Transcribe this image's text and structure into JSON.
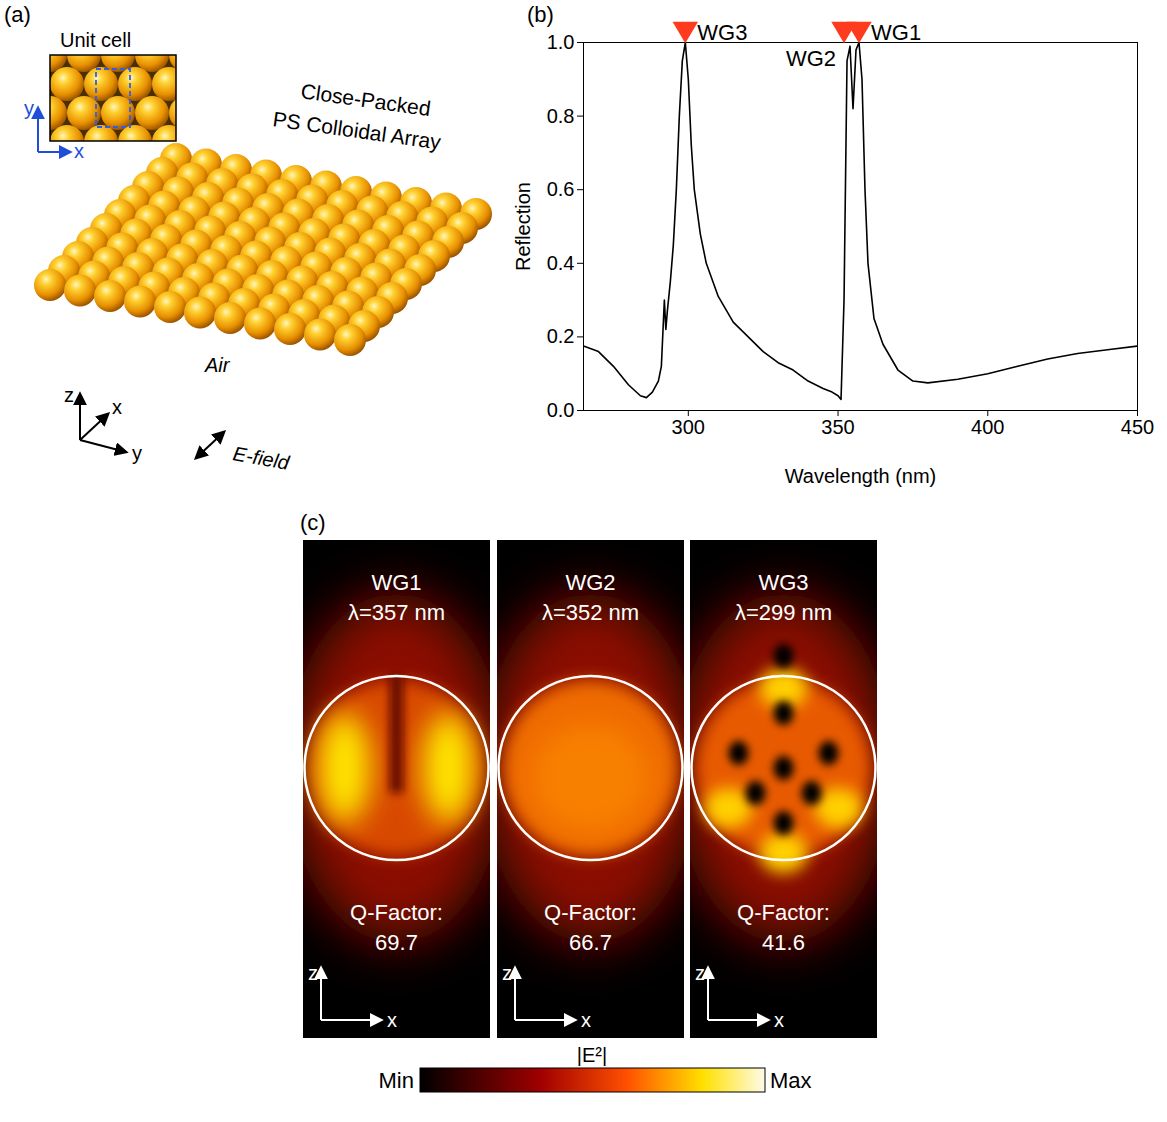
{
  "panel_labels": [
    "(a)",
    "(b)",
    "(c)"
  ],
  "schematic": {
    "inset_title": "Unit cell",
    "inset_axes": [
      "x",
      "y"
    ],
    "array_label": [
      "Close-Packed",
      "PS Colloidal Array"
    ],
    "medium": "Air",
    "axes": [
      "z",
      "x",
      "y"
    ],
    "polarization": "E-field"
  },
  "chart_data": {
    "type": "line",
    "x_label": "Wavelength (nm)",
    "y_label": "Reflection",
    "color": "#000000",
    "x": [
      265,
      270,
      275,
      280,
      284,
      286,
      288,
      290,
      291,
      292,
      292.5,
      293,
      294,
      295,
      296,
      297,
      298,
      299,
      300,
      301,
      302,
      304,
      306,
      310,
      315,
      320,
      325,
      330,
      335,
      340,
      345,
      348,
      350,
      351,
      352,
      353,
      354,
      355,
      356,
      357,
      358,
      359,
      360,
      362,
      365,
      370,
      375,
      380,
      390,
      400,
      410,
      420,
      430,
      440,
      450
    ],
    "values": [
      0.175,
      0.16,
      0.12,
      0.07,
      0.04,
      0.035,
      0.05,
      0.08,
      0.12,
      0.3,
      0.22,
      0.27,
      0.35,
      0.45,
      0.6,
      0.8,
      0.95,
      1.0,
      0.9,
      0.72,
      0.6,
      0.48,
      0.4,
      0.31,
      0.24,
      0.2,
      0.16,
      0.13,
      0.11,
      0.08,
      0.06,
      0.05,
      0.04,
      0.03,
      0.3,
      0.95,
      0.99,
      0.82,
      0.98,
      1.0,
      0.9,
      0.6,
      0.4,
      0.25,
      0.18,
      0.11,
      0.08,
      0.075,
      0.085,
      0.1,
      0.12,
      0.14,
      0.155,
      0.165,
      0.175
    ],
    "xlim": [
      265,
      450
    ],
    "xticks": [
      300,
      350,
      400,
      450
    ],
    "ylim": [
      0,
      1.0
    ],
    "yticks": [
      {
        "value": 0,
        "label": "0.0"
      },
      {
        "value": 0.2,
        "label": "0.2"
      },
      {
        "value": 0.4,
        "label": "0.4"
      },
      {
        "value": 0.6,
        "label": "0.6"
      },
      {
        "value": 0.8,
        "label": "0.8"
      },
      {
        "value": 1.0,
        "label": "1.0"
      }
    ],
    "grid": false,
    "annotations": [
      {
        "text": "WG3",
        "x": 299,
        "y": 1.0,
        "color": "#ff3b1f"
      },
      {
        "text": "WG2",
        "x": 352,
        "y": 1.0,
        "color": "#ff3b1f"
      },
      {
        "text": "WG1",
        "x": 357,
        "y": 1.0,
        "color": "#ff3b1f"
      }
    ]
  },
  "field_maps": {
    "panels": [
      {
        "mode": "WG1",
        "wavelength_label": "λ=357 nm",
        "q_label": "Q-Factor:",
        "q_factor": 69.7
      },
      {
        "mode": "WG2",
        "wavelength_label": "λ=352 nm",
        "q_label": "Q-Factor:",
        "q_factor": 66.7
      },
      {
        "mode": "WG3",
        "wavelength_label": "λ=299 nm",
        "q_label": "Q-Factor:",
        "q_factor": 41.6
      }
    ],
    "axes": [
      "z",
      "x"
    ],
    "colorbar": {
      "title": "|E²|",
      "min_label": "Min",
      "max_label": "Max"
    }
  }
}
